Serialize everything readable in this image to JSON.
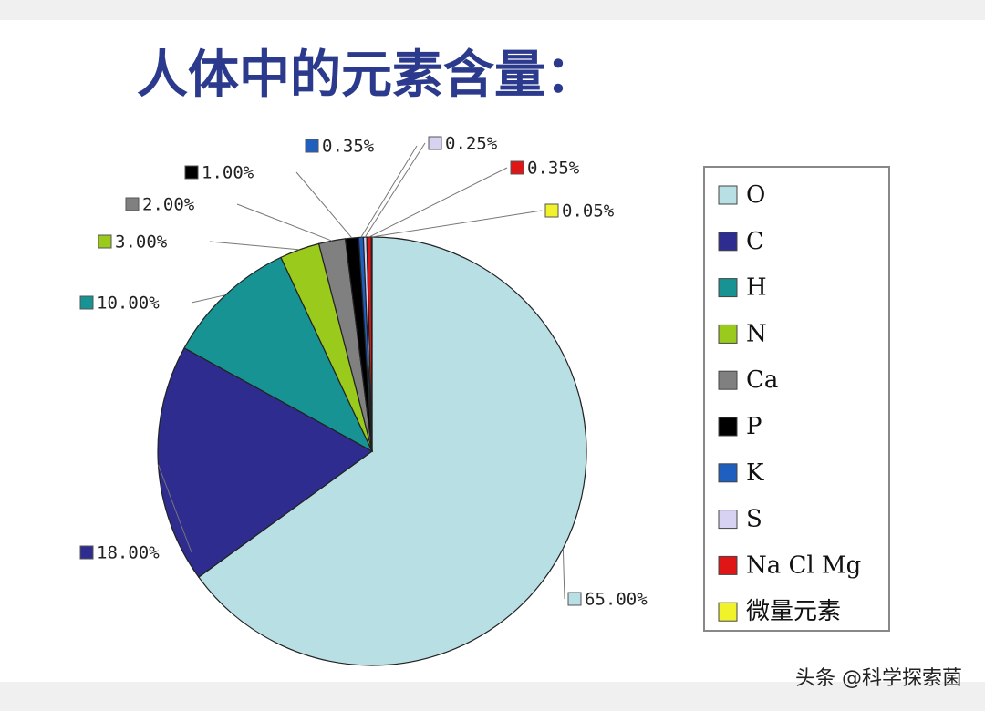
{
  "chart_data": {
    "type": "pie",
    "title": "人体中的元素含量：",
    "categories": [
      "O",
      "C",
      "H",
      "N",
      "Ca",
      "P",
      "K",
      "S",
      "Na Cl Mg",
      "微量元素"
    ],
    "values": [
      65,
      18,
      10,
      3,
      2,
      1,
      0.35,
      0.25,
      0.35,
      0.05
    ],
    "value_labels": [
      "65.00%",
      "18.00%",
      "10.00%",
      "3.00%",
      "2.00%",
      "1.00%",
      "0.35%",
      "0.25%",
      "0.35%",
      "0.05%"
    ],
    "colors": [
      "#b8e0e4",
      "#2e2c8e",
      "#179393",
      "#9acb1c",
      "#808080",
      "#000000",
      "#1f5fbf",
      "#d8d2f2",
      "#e01515",
      "#f2f22a"
    ],
    "legend": "right"
  },
  "watermark": "头条 @科学探索菌"
}
